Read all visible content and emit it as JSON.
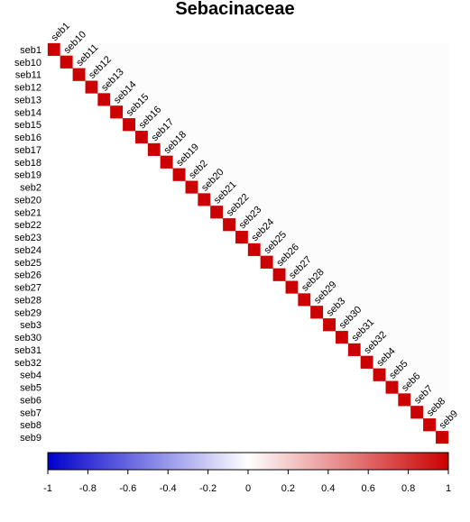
{
  "chart_data": {
    "type": "heatmap",
    "title": "Sebacinaceae",
    "variables": [
      "seb1",
      "seb10",
      "seb11",
      "seb12",
      "seb13",
      "seb14",
      "seb15",
      "seb16",
      "seb17",
      "seb18",
      "seb19",
      "seb2",
      "seb20",
      "seb21",
      "seb22",
      "seb23",
      "seb24",
      "seb25",
      "seb26",
      "seb27",
      "seb28",
      "seb29",
      "seb3",
      "seb30",
      "seb31",
      "seb32",
      "seb4",
      "seb5",
      "seb6",
      "seb7",
      "seb8",
      "seb9"
    ],
    "diagonal_value": 1,
    "off_diagonal_value": 0,
    "layout": "upper-triangular correlation matrix",
    "color_scale": {
      "min": -1,
      "max": 1,
      "ticks": [
        "-1",
        "-0.8",
        "-0.6",
        "-0.4",
        "-0.2",
        "0",
        "0.2",
        "0.4",
        "0.6",
        "0.8",
        "1"
      ],
      "colors": [
        "#0000cc",
        "#ffffff",
        "#cc0000"
      ]
    }
  }
}
